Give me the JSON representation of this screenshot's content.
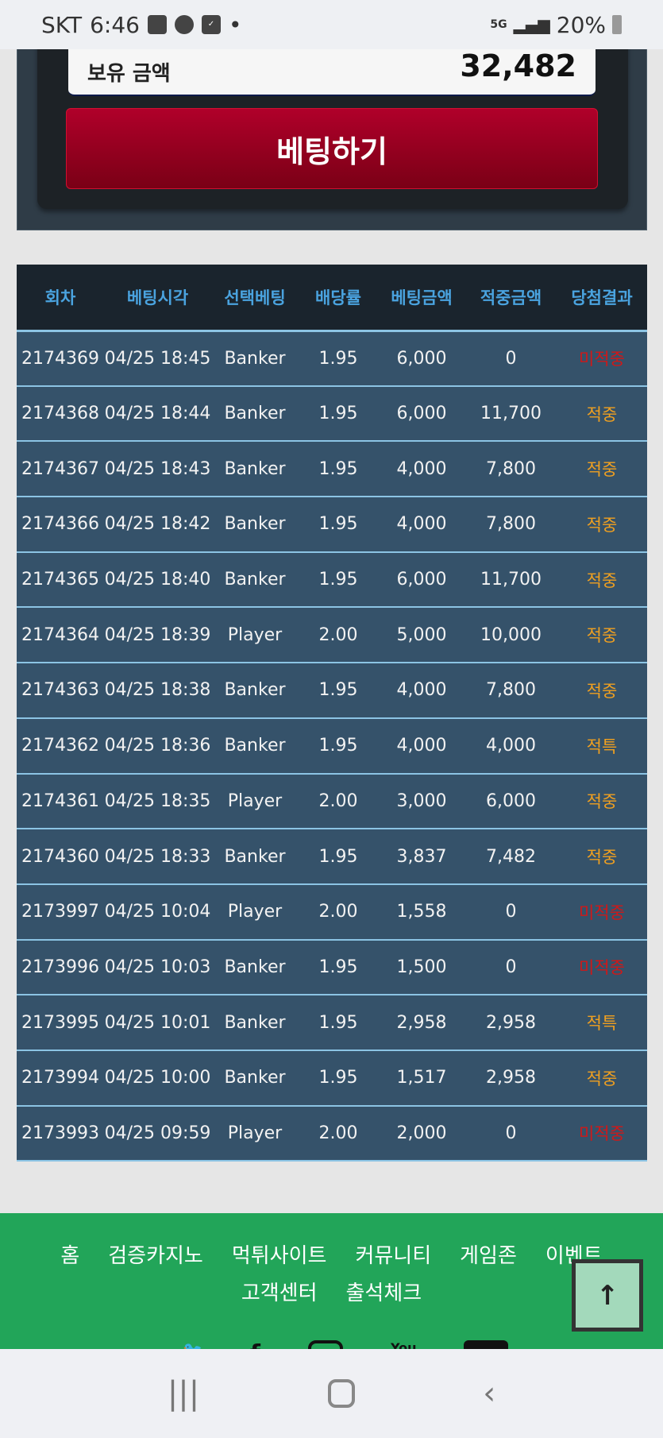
{
  "status_bar": {
    "carrier": "SKT",
    "time": "6:46",
    "network": "5G",
    "battery": "20%",
    "icons": [
      "gallery-icon",
      "kakaotalk-icon",
      "checkbox-icon",
      "dot-icon",
      "signal-icon",
      "battery-icon"
    ]
  },
  "balance": {
    "label": "보유 금액",
    "value": "32,482"
  },
  "bet_button": "베팅하기",
  "table": {
    "headers": [
      "회차",
      "베팅시각",
      "선택베팅",
      "배당률",
      "베팅금액",
      "적중금액",
      "당첨결과"
    ],
    "rows": [
      [
        "2174369",
        "04/25 18:45",
        "Banker",
        "1.95",
        "6,000",
        "0",
        "미적중"
      ],
      [
        "2174368",
        "04/25 18:44",
        "Banker",
        "1.95",
        "6,000",
        "11,700",
        "적중"
      ],
      [
        "2174367",
        "04/25 18:43",
        "Banker",
        "1.95",
        "4,000",
        "7,800",
        "적중"
      ],
      [
        "2174366",
        "04/25 18:42",
        "Banker",
        "1.95",
        "4,000",
        "7,800",
        "적중"
      ],
      [
        "2174365",
        "04/25 18:40",
        "Banker",
        "1.95",
        "6,000",
        "11,700",
        "적중"
      ],
      [
        "2174364",
        "04/25 18:39",
        "Player",
        "2.00",
        "5,000",
        "10,000",
        "적중"
      ],
      [
        "2174363",
        "04/25 18:38",
        "Banker",
        "1.95",
        "4,000",
        "7,800",
        "적중"
      ],
      [
        "2174362",
        "04/25 18:36",
        "Banker",
        "1.95",
        "4,000",
        "4,000",
        "적특"
      ],
      [
        "2174361",
        "04/25 18:35",
        "Player",
        "2.00",
        "3,000",
        "6,000",
        "적중"
      ],
      [
        "2174360",
        "04/25 18:33",
        "Banker",
        "1.95",
        "3,837",
        "7,482",
        "적중"
      ],
      [
        "2173997",
        "04/25 10:04",
        "Player",
        "2.00",
        "1,558",
        "0",
        "미적중"
      ],
      [
        "2173996",
        "04/25 10:03",
        "Banker",
        "1.95",
        "1,500",
        "0",
        "미적중"
      ],
      [
        "2173995",
        "04/25 10:01",
        "Banker",
        "1.95",
        "2,958",
        "2,958",
        "적특"
      ],
      [
        "2173994",
        "04/25 10:00",
        "Banker",
        "1.95",
        "1,517",
        "2,958",
        "적중"
      ],
      [
        "2173993",
        "04/25 09:59",
        "Player",
        "2.00",
        "2,000",
        "0",
        "미적중"
      ]
    ],
    "colors": {
      "win": "#f0a020",
      "lose": "#d01818",
      "header_text": "#4aa3df"
    }
  },
  "footer": {
    "nav": [
      "홈",
      "검증카지노",
      "먹튀사이트",
      "커뮤니티",
      "게임존",
      "이벤트",
      "고객센터",
      "출석체크"
    ],
    "social_icons": [
      "twitter-icon",
      "facebook-icon",
      "instagram-icon",
      "youtube-icon",
      "telegram-icon"
    ],
    "social_partial": [
      "You"
    ]
  },
  "scroll_top": "↑",
  "system_nav": [
    "recents-icon",
    "home-icon",
    "back-icon"
  ]
}
